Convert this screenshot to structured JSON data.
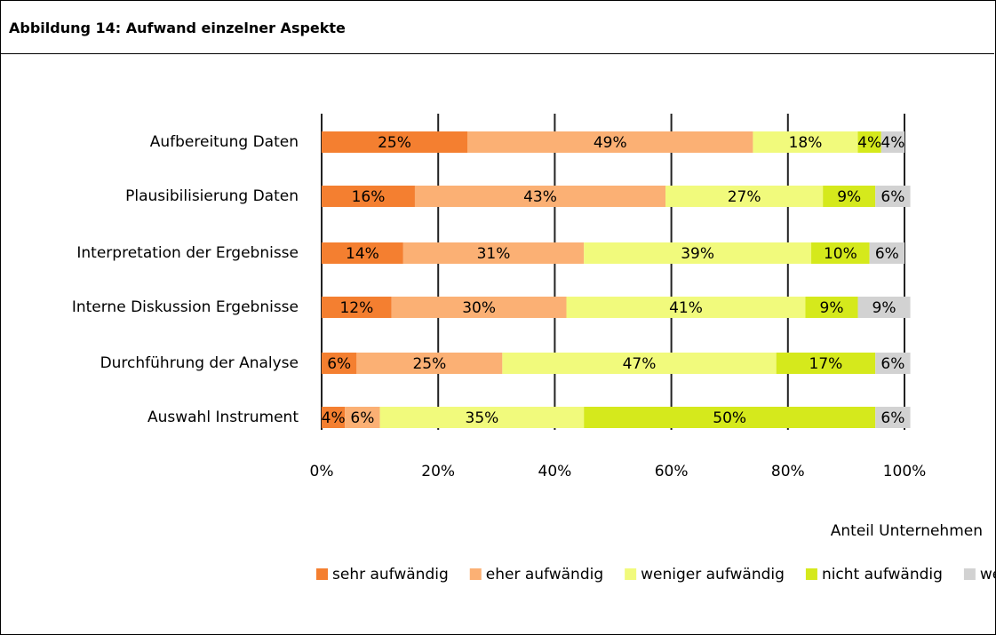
{
  "chart_data": {
    "type": "bar",
    "orientation": "horizontal",
    "stacked": true,
    "title": "Abbildung 14: Aufwand einzelner Aspekte",
    "x_axis_label": "Anteil Unternehmen",
    "categories": [
      "Aufbereitung Daten",
      "Plausibilisierung Daten",
      "Interpretation der Ergebnisse",
      "Interne Diskussion Ergebnisse",
      "Durchführung der Analyse",
      "Auswahl Instrument"
    ],
    "series": [
      {
        "name": "sehr aufwändig",
        "color": "#f47f30",
        "values": [
          25,
          16,
          14,
          12,
          6,
          4
        ],
        "value_labels": [
          "25%",
          "16%",
          "14%",
          "12%",
          "6%",
          "4%"
        ]
      },
      {
        "name": "eher aufwändig",
        "color": "#fbb074",
        "values": [
          49,
          43,
          31,
          30,
          25,
          6
        ],
        "value_labels": [
          "49%",
          "43%",
          "31%",
          "30%",
          "25%",
          "6%"
        ]
      },
      {
        "name": "weniger aufwändig",
        "color": "#f1fa7c",
        "values": [
          18,
          27,
          39,
          41,
          47,
          35
        ],
        "value_labels": [
          "18%",
          "27%",
          "39%",
          "41%",
          "47%",
          "35%"
        ]
      },
      {
        "name": "nicht aufwändig",
        "color": "#d5e91c",
        "values": [
          4,
          9,
          10,
          9,
          17,
          50
        ],
        "value_labels": [
          "4%",
          "9%",
          "10%",
          "9%",
          "17%",
          "50%"
        ]
      },
      {
        "name": "weiss nicht",
        "color": "#d2d2d2",
        "values": [
          4,
          6,
          6,
          9,
          6,
          6
        ],
        "value_labels": [
          "4%",
          "6%",
          "6%",
          "9%",
          "6%",
          "6%"
        ]
      }
    ],
    "xlim": [
      0,
      100
    ],
    "xticks": [
      {
        "value": 0,
        "label": "0%"
      },
      {
        "value": 20,
        "label": "20%"
      },
      {
        "value": 40,
        "label": "40%"
      },
      {
        "value": 60,
        "label": "60%"
      },
      {
        "value": 80,
        "label": "80%"
      },
      {
        "value": 100,
        "label": "100%"
      }
    ],
    "grid": true,
    "legend": "bottom"
  }
}
